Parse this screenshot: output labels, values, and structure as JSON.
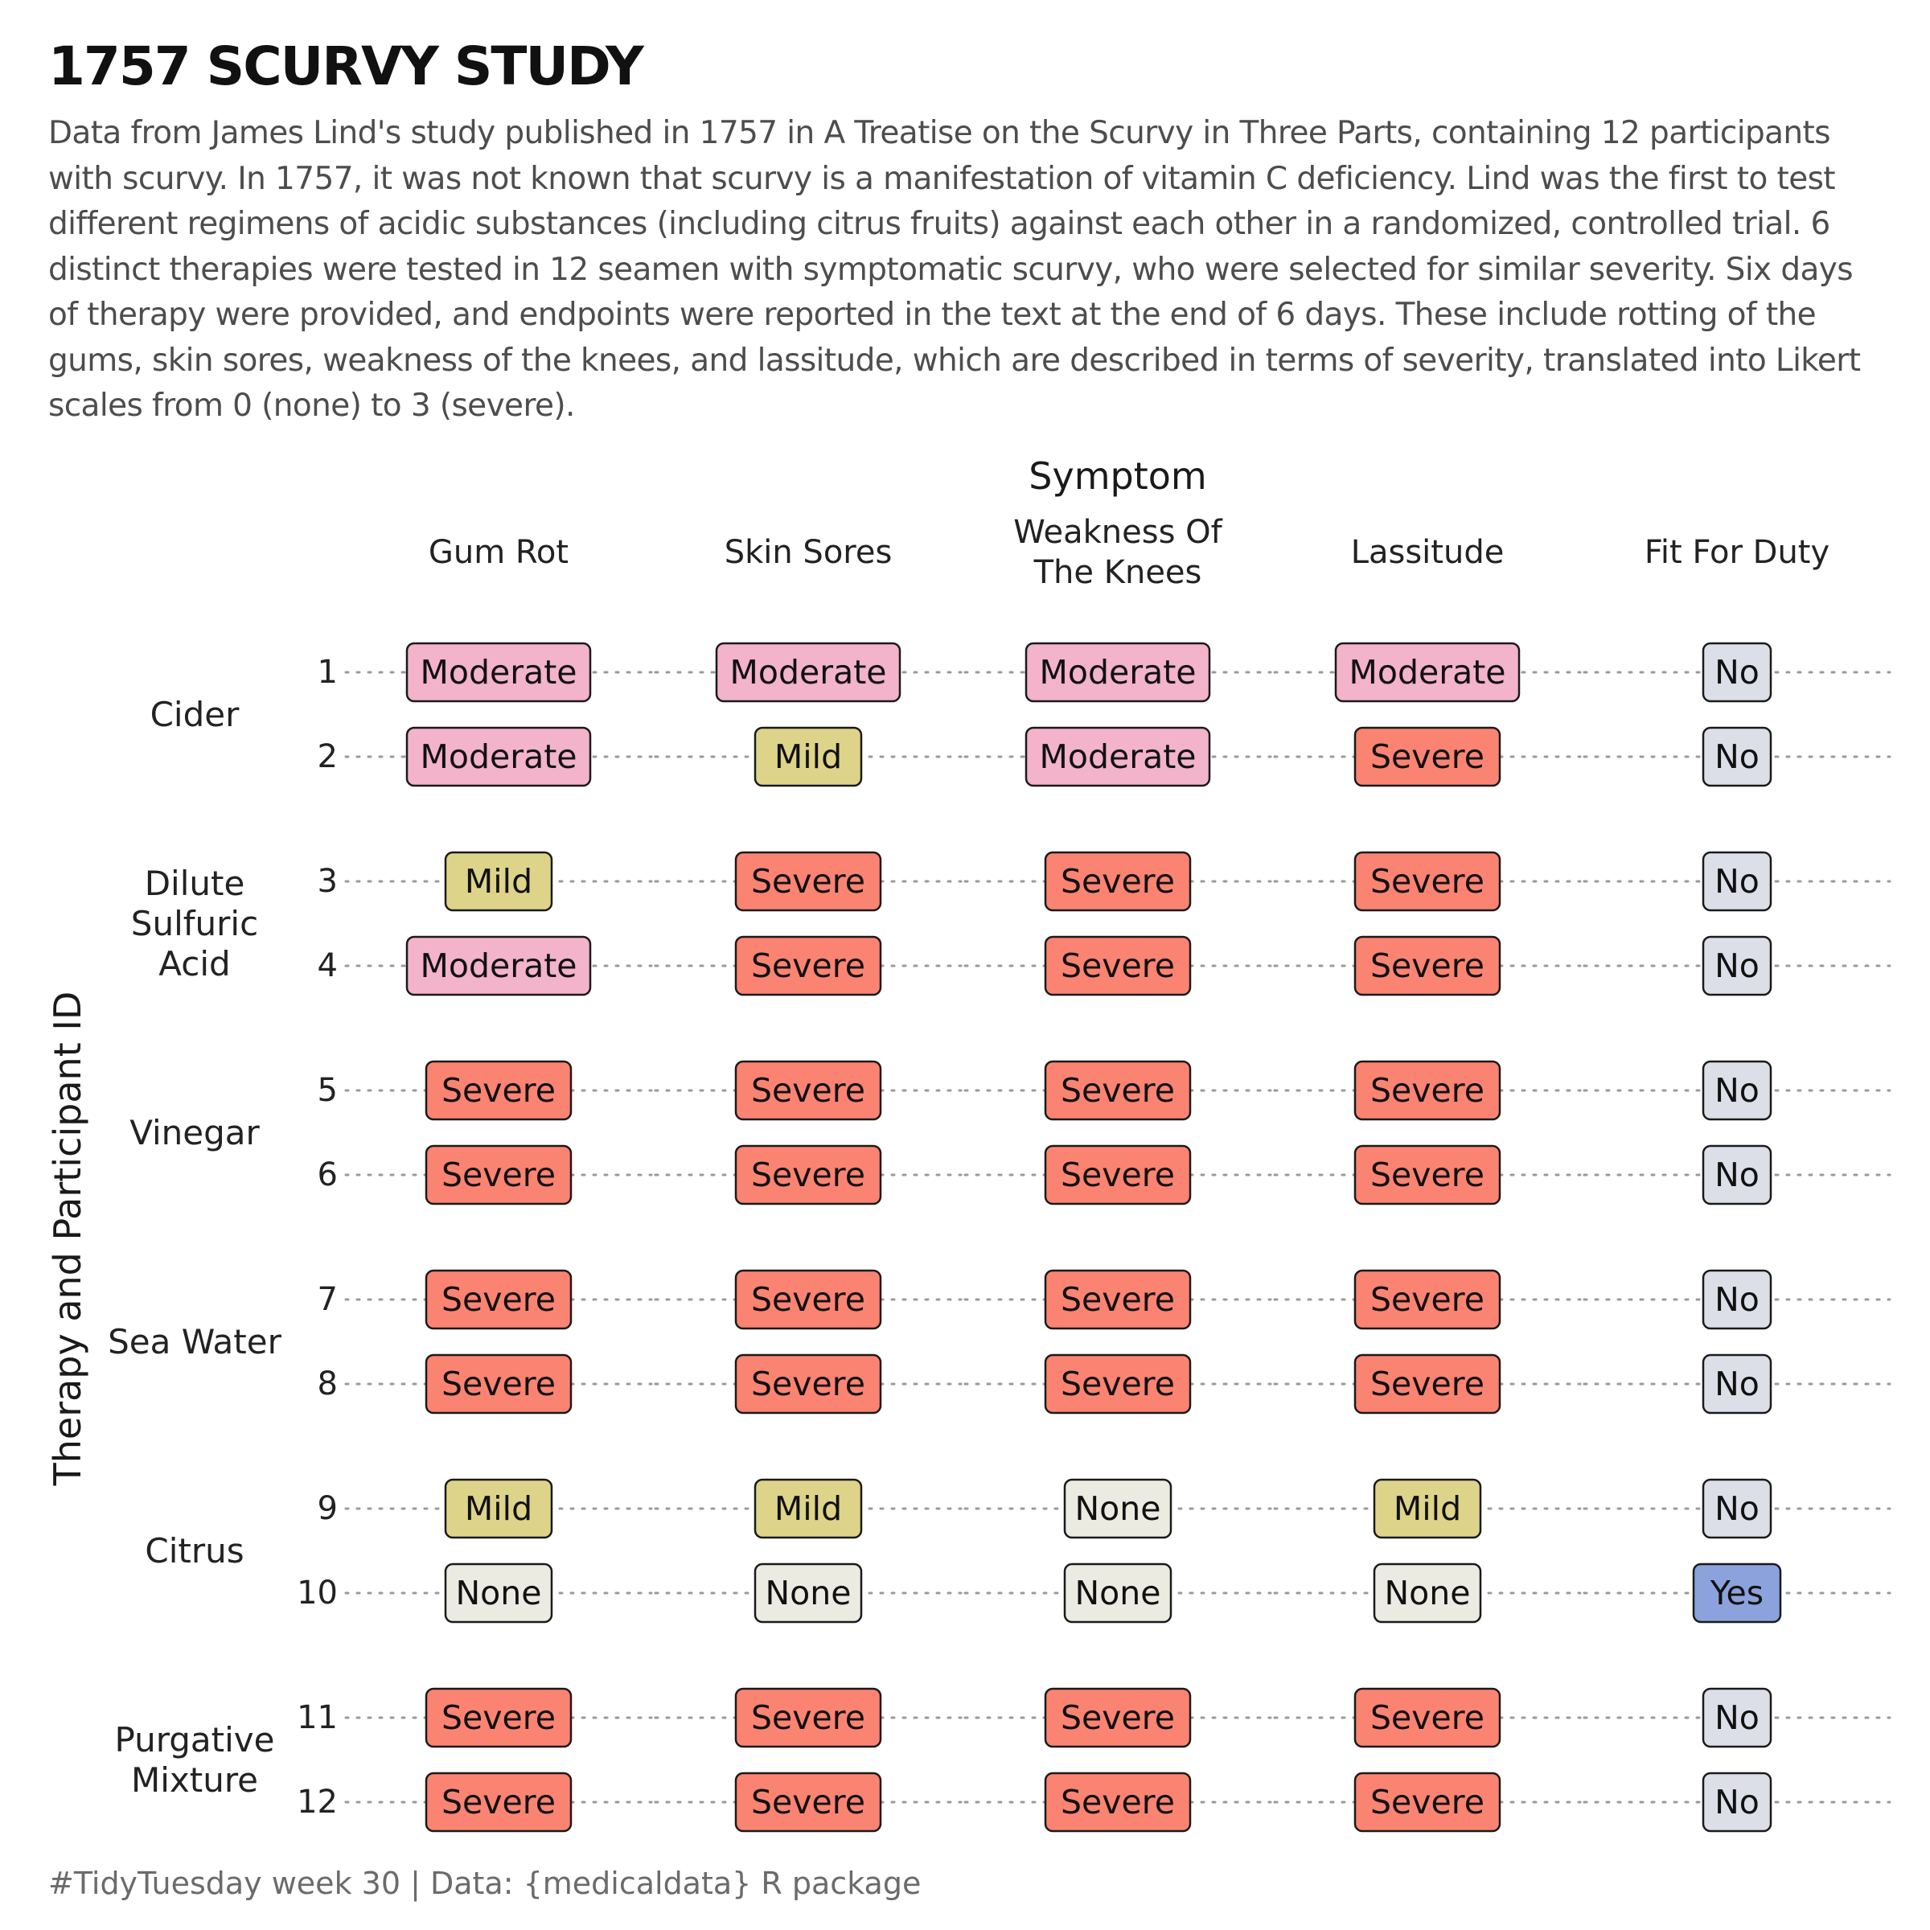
{
  "title": "1757 SCURVY STUDY",
  "subtitle": "Data from James Lind's study published in 1757 in A Treatise on the Scurvy in Three Parts, containing 12 participants with scurvy. In 1757, it was not known that scurvy is a manifestation of vitamin C deficiency. Lind was the first to test different regimens of acidic substances (including citrus fruits) against each other in a randomized, controlled trial. 6 distinct therapies were tested in 12 seamen with symptomatic scurvy, who were selected for similar severity. Six days of therapy were provided, and endpoints were reported in the text at the end of 6 days. These include rotting of the gums, skin sores, weakness of the knees, and lassitude, which are described in terms of severity, translated into Likert scales from 0 (none) to 3 (severe).",
  "caption": "#TidyTuesday week 30  |  Data: {medicaldata} R package",
  "chart_data": {
    "type": "table",
    "x_title": "Symptom",
    "y_title": "Therapy and Participant ID",
    "columns": [
      {
        "label": [
          "Gum Rot"
        ]
      },
      {
        "label": [
          "Skin Sores"
        ]
      },
      {
        "label": [
          "Weakness Of",
          "The Knees"
        ]
      },
      {
        "label": [
          "Lassitude"
        ]
      },
      {
        "label": [
          "Fit For Duty"
        ]
      }
    ],
    "groups": [
      {
        "label": [
          "Cider"
        ],
        "participants": [
          {
            "id": "1",
            "values": [
              "Moderate",
              "Moderate",
              "Moderate",
              "Moderate",
              "No"
            ]
          },
          {
            "id": "2",
            "values": [
              "Moderate",
              "Mild",
              "Moderate",
              "Severe",
              "No"
            ]
          }
        ]
      },
      {
        "label": [
          "Dilute",
          "Sulfuric",
          "Acid"
        ],
        "participants": [
          {
            "id": "3",
            "values": [
              "Mild",
              "Severe",
              "Severe",
              "Severe",
              "No"
            ]
          },
          {
            "id": "4",
            "values": [
              "Moderate",
              "Severe",
              "Severe",
              "Severe",
              "No"
            ]
          }
        ]
      },
      {
        "label": [
          "Vinegar"
        ],
        "participants": [
          {
            "id": "5",
            "values": [
              "Severe",
              "Severe",
              "Severe",
              "Severe",
              "No"
            ]
          },
          {
            "id": "6",
            "values": [
              "Severe",
              "Severe",
              "Severe",
              "Severe",
              "No"
            ]
          }
        ]
      },
      {
        "label": [
          "Sea Water"
        ],
        "participants": [
          {
            "id": "7",
            "values": [
              "Severe",
              "Severe",
              "Severe",
              "Severe",
              "No"
            ]
          },
          {
            "id": "8",
            "values": [
              "Severe",
              "Severe",
              "Severe",
              "Severe",
              "No"
            ]
          }
        ]
      },
      {
        "label": [
          "Citrus"
        ],
        "participants": [
          {
            "id": "9",
            "values": [
              "Mild",
              "Mild",
              "None",
              "Mild",
              "No"
            ]
          },
          {
            "id": "10",
            "values": [
              "None",
              "None",
              "None",
              "None",
              "Yes"
            ]
          }
        ]
      },
      {
        "label": [
          "Purgative",
          "Mixture"
        ],
        "participants": [
          {
            "id": "11",
            "values": [
              "Severe",
              "Severe",
              "Severe",
              "Severe",
              "No"
            ]
          },
          {
            "id": "12",
            "values": [
              "Severe",
              "Severe",
              "Severe",
              "Severe",
              "No"
            ]
          }
        ]
      }
    ],
    "colors": {
      "None": "#ecebe2",
      "Mild": "#ddd48a",
      "Moderate": "#f3b3ca",
      "Severe": "#fb8372",
      "No": "#dcdfe8",
      "Yes": "#8ca2dc"
    },
    "gridlines": "dotted"
  }
}
